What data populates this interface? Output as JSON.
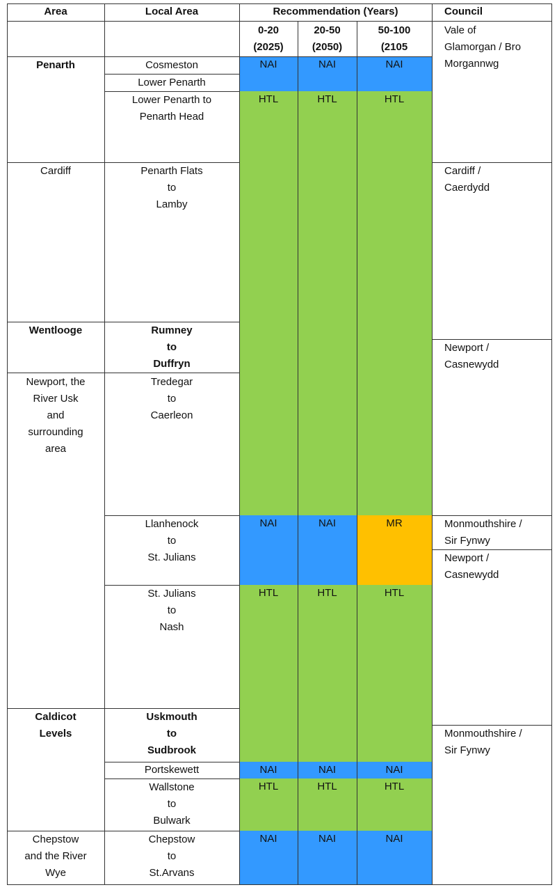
{
  "header": {
    "area": "Area",
    "local_area": "Local Area",
    "recommendation": "Recommendation (Years)",
    "council": "Council",
    "epoch_1": [
      "0-20",
      "(2025)"
    ],
    "epoch_2": [
      "20-50",
      "(2050)"
    ],
    "epoch_3": [
      "50-100",
      "(2105"
    ]
  },
  "colors": {
    "HTL": "#92d050",
    "NAI": "#3399ff",
    "MR": "#ffc000"
  },
  "areas": {
    "penarth": [
      "Penarth"
    ],
    "cardiff": [
      "Cardiff"
    ],
    "wentlooge": [
      "Wentlooge"
    ],
    "newport": [
      "Newport, the",
      "River Usk",
      "and",
      "surrounding",
      "area"
    ],
    "caldicot": [
      "Caldicot",
      "Levels"
    ],
    "chepstow": [
      "Chepstow",
      "and the River",
      "Wye"
    ]
  },
  "local_areas": {
    "cosmeston": [
      "Cosmeston"
    ],
    "lower_penarth": [
      "Lower Penarth"
    ],
    "lower_penarth_head": [
      "Lower Penarth to",
      "Penarth Head"
    ],
    "penarth_flats": [
      "Penarth Flats",
      "to",
      "Lamby"
    ],
    "rumney": [
      "Rumney",
      "to",
      "Duffryn"
    ],
    "tredegar": [
      "Tredegar",
      "to",
      "Caerleon"
    ],
    "llanhenock": [
      "Llanhenock",
      "to",
      "St. Julians"
    ],
    "st_julians": [
      "St. Julians",
      "to",
      "Nash"
    ],
    "uskmouth": [
      "Uskmouth",
      "to",
      "Sudbrook"
    ],
    "portskewett": [
      "Portskewett"
    ],
    "wallstone": [
      "Wallstone",
      "to",
      "Bulwark"
    ],
    "chepstow_local": [
      "Chepstow",
      "to",
      "St.Arvans"
    ]
  },
  "recommendations": {
    "cosmeston": [
      "NAI",
      "NAI",
      "NAI"
    ],
    "lower_penarth_head": [
      "HTL",
      "HTL",
      "HTL"
    ],
    "llanhenock": [
      "NAI",
      "NAI",
      "MR"
    ],
    "st_julians": [
      "HTL",
      "HTL",
      "HTL"
    ],
    "portskewett": [
      "NAI",
      "NAI",
      "NAI"
    ],
    "wallstone": [
      "HTL",
      "HTL",
      "HTL"
    ],
    "chepstow_local": [
      "NAI",
      "NAI",
      "NAI"
    ]
  },
  "councils": {
    "vale": [
      "Vale of",
      "Glamorgan / Bro",
      "Morgannwg"
    ],
    "cardiff": [
      "Cardiff /",
      "Caerdydd"
    ],
    "newport_1": [
      "Newport /",
      "Casnewydd"
    ],
    "monmouth_1": [
      "Monmouthshire /",
      "Sir Fynwy"
    ],
    "newport_2": [
      "Newport /",
      "Casnewydd"
    ],
    "monmouth_2": [
      "Monmouthshire /",
      "Sir Fynwy"
    ]
  }
}
